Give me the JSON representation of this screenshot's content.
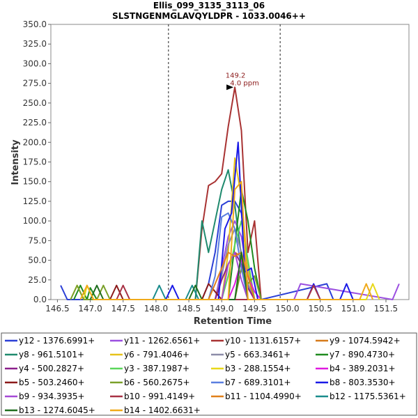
{
  "chart_data": {
    "type": "line",
    "title": "Ellis_099_3135_3113_06",
    "subtitle": "SLSTNGENMGLAVQYLDPR - 1033.0046++",
    "xlabel": "Retention Time",
    "ylabel": "Intensity",
    "xlim": [
      146.4,
      151.85
    ],
    "ylim": [
      0,
      350
    ],
    "xticks": [
      "146.5",
      "147.0",
      "147.5",
      "148.0",
      "148.5",
      "149.0",
      "149.5",
      "150.0",
      "150.5",
      "151.0",
      "151.5"
    ],
    "yticks": [
      "0.0",
      "25.0",
      "50.0",
      "75.0",
      "100.0",
      "125.0",
      "150.0",
      "175.0",
      "200.0",
      "225.0",
      "250.0",
      "275.0",
      "300.0",
      "325.0",
      "350.0"
    ],
    "boundaries": [
      148.19,
      149.89
    ],
    "annotation": {
      "line1": "149.2",
      "line2": "4.0 ppm",
      "x": 149.2,
      "y": 270
    },
    "legend_position": "bottom",
    "series": [
      {
        "name": "y12 - 1376.6991+",
        "color": "#2b3fd6",
        "x": [
          146.55,
          146.65,
          148.7,
          148.8,
          148.9,
          149.0,
          149.1,
          149.2,
          149.3,
          149.4,
          149.5,
          149.6,
          150.6,
          150.7
        ],
        "y": [
          18,
          0,
          0,
          20,
          60,
          120,
          125,
          125,
          110,
          40,
          0,
          0,
          20,
          0
        ]
      },
      {
        "name": "y11 - 1262.6561+",
        "color": "#9b4fe0",
        "x": [
          148.9,
          149.0,
          149.1,
          149.2,
          149.3,
          149.4,
          149.5,
          150.1,
          150.2,
          151.6,
          151.7
        ],
        "y": [
          0,
          40,
          80,
          100,
          80,
          30,
          0,
          0,
          20,
          0,
          20
        ]
      },
      {
        "name": "y10 - 1131.6157+",
        "color": "#a83232",
        "x": [
          148.6,
          148.7,
          148.8,
          148.9,
          149.0,
          149.1,
          149.2,
          149.3,
          149.4,
          149.5,
          149.6
        ],
        "y": [
          0,
          90,
          145,
          150,
          160,
          220,
          270,
          215,
          60,
          100,
          0
        ]
      },
      {
        "name": "y9 - 1074.5942+",
        "color": "#d67a1a",
        "x": [
          149.0,
          149.1,
          149.2,
          149.3,
          149.4,
          149.5
        ],
        "y": [
          0,
          45,
          60,
          55,
          20,
          0
        ]
      },
      {
        "name": "y8 - 961.5101+",
        "color": "#1f8a6e",
        "x": [
          148.6,
          148.7,
          148.8,
          148.9,
          149.0,
          149.1,
          149.2,
          149.3,
          149.4
        ],
        "y": [
          0,
          100,
          60,
          100,
          140,
          165,
          120,
          55,
          0
        ]
      },
      {
        "name": "y6 - 791.4046+",
        "color": "#e6c21a",
        "x": [
          149.0,
          149.1,
          149.2,
          149.3,
          149.4,
          149.5
        ],
        "y": [
          0,
          60,
          180,
          130,
          40,
          0
        ]
      },
      {
        "name": "y5 - 663.3461+",
        "color": "#8c8ca8",
        "x": [
          148.9,
          149.0,
          149.1,
          149.2,
          149.3,
          149.4,
          149.5
        ],
        "y": [
          0,
          30,
          70,
          90,
          60,
          20,
          0
        ]
      },
      {
        "name": "y7 - 890.4730+",
        "color": "#1f8a1f",
        "x": [
          146.75,
          146.85,
          146.95,
          147.0,
          147.1,
          149.1,
          149.2,
          149.3,
          149.4,
          149.5,
          149.6
        ],
        "y": [
          0,
          18,
          0,
          15,
          0,
          0,
          70,
          140,
          100,
          40,
          0
        ]
      },
      {
        "name": "y4 - 500.2827+",
        "color": "#8b1f8b",
        "x": [
          148.9,
          149.0,
          149.1,
          149.2,
          149.3,
          149.4,
          149.5
        ],
        "y": [
          0,
          25,
          45,
          60,
          45,
          15,
          0
        ]
      },
      {
        "name": "y3 - 387.1987+",
        "color": "#5ad65a",
        "x": [
          149.0,
          149.1,
          149.2,
          149.3,
          149.4,
          149.5
        ],
        "y": [
          0,
          30,
          70,
          100,
          50,
          0
        ]
      },
      {
        "name": "b3 - 288.1554+",
        "color": "#e8d81a",
        "x": [
          146.7,
          146.8,
          146.9,
          146.95,
          147.05,
          151.2,
          151.3,
          151.4
        ],
        "y": [
          0,
          18,
          0,
          18,
          0,
          0,
          20,
          0
        ]
      },
      {
        "name": "b4 - 389.2031+",
        "color": "#e01ae0",
        "x": [
          149.1,
          149.2,
          149.3,
          149.4,
          149.5,
          149.6
        ],
        "y": [
          0,
          20,
          50,
          30,
          10,
          0
        ]
      },
      {
        "name": "b5 - 503.2460+",
        "color": "#8b1a1a",
        "x": [
          147.3,
          147.4,
          147.5,
          148.7,
          148.8,
          148.9,
          149.0
        ],
        "y": [
          0,
          18,
          0,
          0,
          20,
          10,
          0
        ]
      },
      {
        "name": "b6 - 560.2675+",
        "color": "#7aa02a",
        "x": [
          146.7,
          146.8,
          146.9,
          147.1,
          147.2,
          147.3,
          149.2,
          149.3,
          149.4,
          149.5,
          149.6
        ],
        "y": [
          0,
          18,
          0,
          0,
          18,
          0,
          0,
          40,
          20,
          30,
          0
        ]
      },
      {
        "name": "b7 - 689.3101+",
        "color": "#5a7ee0",
        "x": [
          148.8,
          148.9,
          149.0,
          149.1,
          149.2,
          149.3,
          149.4
        ],
        "y": [
          0,
          30,
          105,
          110,
          90,
          40,
          0
        ]
      },
      {
        "name": "b8 - 803.3530+",
        "color": "#1a1ae6",
        "x": [
          148.15,
          148.25,
          148.35,
          148.95,
          149.05,
          149.15,
          149.25,
          149.35,
          149.45,
          149.55,
          150.3,
          150.4,
          150.5,
          150.8,
          150.9,
          151.0
        ],
        "y": [
          0,
          18,
          0,
          0,
          90,
          110,
          200,
          35,
          40,
          0,
          0,
          20,
          0,
          0,
          20,
          0
        ]
      },
      {
        "name": "b9 - 934.3935+",
        "color": "#a64ad6",
        "x": [
          149.0,
          149.1,
          149.2,
          149.3,
          149.4
        ],
        "y": [
          0,
          45,
          60,
          25,
          0
        ]
      },
      {
        "name": "b10 - 991.4149+",
        "color": "#a83245",
        "x": [
          147.4,
          147.5,
          147.6,
          150.3,
          150.4,
          150.5
        ],
        "y": [
          0,
          18,
          0,
          0,
          18,
          0
        ]
      },
      {
        "name": "b11 - 1104.4990+",
        "color": "#e0801a",
        "x": [
          148.8,
          148.9,
          149.0,
          149.1,
          149.2,
          149.3,
          149.4,
          149.5
        ],
        "y": [
          0,
          20,
          40,
          60,
          55,
          60,
          30,
          0
        ]
      },
      {
        "name": "b12 - 1175.5361+",
        "color": "#1a8c8c",
        "x": [
          147.95,
          148.05,
          148.15,
          148.45,
          148.55,
          148.65
        ],
        "y": [
          0,
          18,
          0,
          0,
          18,
          0
        ]
      },
      {
        "name": "b13 - 1274.6045+",
        "color": "#1f6e1f",
        "x": [
          147.0,
          147.1,
          147.2,
          148.5,
          148.6,
          148.7,
          149.2,
          149.3,
          149.4
        ],
        "y": [
          0,
          18,
          0,
          0,
          18,
          0,
          0,
          60,
          0
        ]
      },
      {
        "name": "b14 - 1402.6631+",
        "color": "#f0aa1a",
        "x": [
          146.85,
          146.95,
          147.05,
          149.1,
          149.2,
          149.3,
          149.4,
          151.1,
          151.2,
          151.3
        ],
        "y": [
          0,
          18,
          0,
          0,
          140,
          150,
          0,
          0,
          20,
          0
        ]
      }
    ]
  }
}
